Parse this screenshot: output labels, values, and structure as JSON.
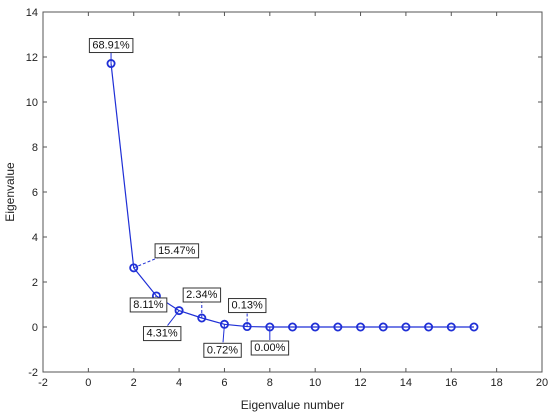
{
  "chart_data": {
    "type": "line",
    "xlabel": "Eigenvalue number",
    "ylabel": "Eigenvalue",
    "xlim": [
      -2,
      20
    ],
    "ylim": [
      -2,
      14
    ],
    "x_ticks": [
      -2,
      0,
      2,
      4,
      6,
      8,
      10,
      12,
      14,
      16,
      18,
      20
    ],
    "y_ticks": [
      -2,
      0,
      2,
      4,
      6,
      8,
      10,
      12,
      14
    ],
    "grid": false,
    "series": [
      {
        "x": [
          1,
          2,
          3,
          4,
          5,
          6,
          7,
          8,
          9,
          10,
          11,
          12,
          13,
          14,
          15,
          16,
          17
        ],
        "y": [
          11.71,
          2.63,
          1.38,
          0.73,
          0.4,
          0.12,
          0.02,
          0.0,
          0.0,
          0.0,
          0.0,
          0.0,
          0.0,
          0.0,
          0.0,
          0.0,
          0.0
        ],
        "color": "#1f2fd6",
        "marker": "circle"
      }
    ],
    "annotations": [
      {
        "text": "68.91%",
        "point_index": 0
      },
      {
        "text": "15.47%",
        "point_index": 1
      },
      {
        "text": "8.11%",
        "point_index": 2
      },
      {
        "text": "4.31%",
        "point_index": 3
      },
      {
        "text": "2.34%",
        "point_index": 4
      },
      {
        "text": "0.72%",
        "point_index": 5
      },
      {
        "text": "0.13%",
        "point_index": 6
      },
      {
        "text": "0.00%",
        "point_index": 7
      }
    ]
  }
}
